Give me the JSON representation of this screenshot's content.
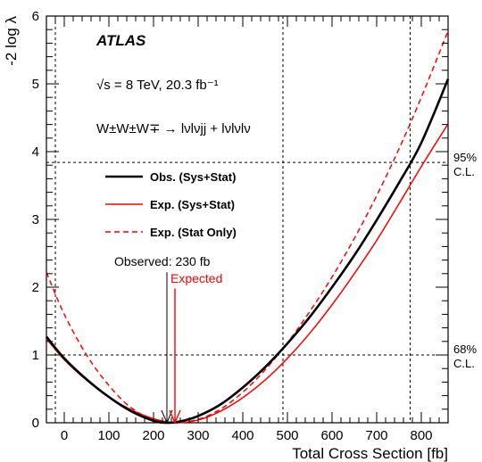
{
  "chart_data": {
    "type": "line",
    "title": "",
    "xlabel": "Total Cross Section [fb]",
    "ylabel": "-2 log λ",
    "xlim": [
      -40,
      860
    ],
    "ylim": [
      0,
      6
    ],
    "xticks": [
      0,
      100,
      200,
      300,
      400,
      500,
      600,
      700,
      800
    ],
    "yticks": [
      0,
      1,
      2,
      3,
      4,
      5,
      6
    ],
    "grid": false,
    "annotations": {
      "experiment": "ATLAS",
      "energy": "√s = 8 TeV, 20.3 fb⁻¹",
      "process": "W±W±W∓ → lνlνjj + lνlνlν",
      "observed_label": "Observed: 230 fb",
      "expected_label": "Expected",
      "cl95_label_line1": "95%",
      "cl95_label_line2": "C.L.",
      "cl68_label_line1": "68%",
      "cl68_label_line2": "C.L."
    },
    "reference_lines": {
      "horizontal": [
        3.84,
        1.0
      ],
      "vertical": [
        -20,
        490,
        775
      ]
    },
    "markers": {
      "observed_x": 230,
      "expected_x": 248
    },
    "legend": {
      "placement": "center-left",
      "entries": [
        {
          "label": "Obs. (Sys+Stat)",
          "color": "#000000",
          "style": "solid-thick"
        },
        {
          "label": "Exp. (Sys+Stat)",
          "color": "#ff0000",
          "style": "solid"
        },
        {
          "label": "Exp. (Stat Only)",
          "color": "#ff0000",
          "style": "dashed"
        }
      ]
    },
    "series": [
      {
        "name": "Obs. (Sys+Stat)",
        "color": "#000000",
        "style": "solid-thick",
        "x": [
          -40,
          0,
          50,
          100,
          150,
          200,
          230,
          260,
          300,
          350,
          400,
          450,
          500,
          550,
          600,
          650,
          700,
          750,
          800,
          860
        ],
        "y": [
          1.27,
          0.95,
          0.64,
          0.38,
          0.17,
          0.03,
          0.0,
          0.02,
          0.1,
          0.27,
          0.52,
          0.82,
          1.17,
          1.56,
          2.0,
          2.47,
          2.99,
          3.54,
          4.13,
          5.07
        ]
      },
      {
        "name": "Exp. (Sys+Stat)",
        "color": "#ff0000",
        "style": "solid",
        "x": [
          -40,
          0,
          50,
          100,
          150,
          200,
          248,
          300,
          350,
          400,
          450,
          500,
          550,
          600,
          650,
          700,
          750,
          800,
          860
        ],
        "y": [
          1.24,
          0.93,
          0.63,
          0.38,
          0.19,
          0.06,
          0.0,
          0.04,
          0.17,
          0.37,
          0.63,
          0.95,
          1.32,
          1.74,
          2.2,
          2.69,
          3.23,
          3.78,
          4.41
        ]
      },
      {
        "name": "Exp. (Stat Only)",
        "color": "#ff0000",
        "style": "dashed",
        "x": [
          -40,
          0,
          50,
          100,
          150,
          200,
          248,
          300,
          350,
          400,
          450,
          500,
          550,
          600,
          650,
          700,
          750,
          800,
          860
        ],
        "y": [
          2.22,
          1.6,
          1.0,
          0.55,
          0.22,
          0.05,
          0.0,
          0.05,
          0.2,
          0.45,
          0.78,
          1.18,
          1.64,
          2.15,
          2.72,
          3.35,
          4.04,
          4.8,
          5.78
        ]
      }
    ]
  }
}
